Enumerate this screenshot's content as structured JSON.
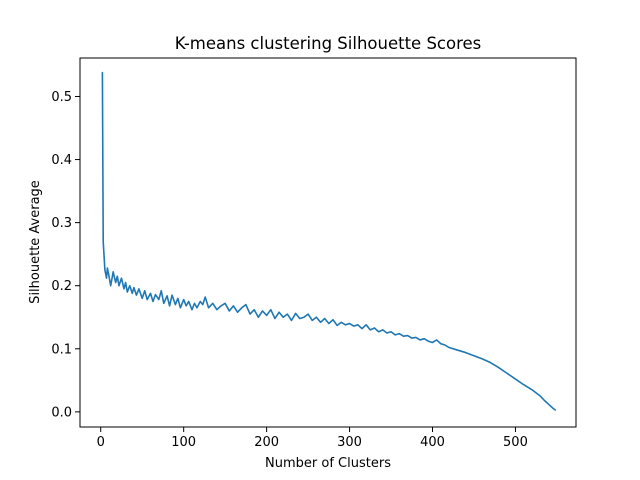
{
  "chart_data": {
    "type": "line",
    "title": "K-means clustering Silhouette Scores",
    "xlabel": "Number of Clusters",
    "ylabel": "Silhouette Average",
    "xlim": [
      -25,
      573
    ],
    "ylim": [
      -0.024,
      0.561
    ],
    "xticks": [
      0,
      100,
      200,
      300,
      400,
      500
    ],
    "xtick_labels": [
      "0",
      "100",
      "200",
      "300",
      "400",
      "500"
    ],
    "yticks": [
      0.0,
      0.1,
      0.2,
      0.3,
      0.4,
      0.5
    ],
    "ytick_labels": [
      "0.0",
      "0.1",
      "0.2",
      "0.3",
      "0.4",
      "0.5"
    ],
    "grid": false,
    "series_color": "#1f77b4",
    "series": [
      {
        "x": [
          2,
          3,
          5,
          7,
          8,
          10,
          12,
          15,
          18,
          20,
          22,
          25,
          28,
          30,
          32,
          35,
          38,
          40,
          43,
          46,
          50,
          53,
          56,
          60,
          63,
          66,
          70,
          73,
          76,
          80,
          83,
          86,
          90,
          93,
          96,
          100,
          103,
          106,
          110,
          113,
          116,
          120,
          123,
          126,
          130,
          135,
          140,
          145,
          150,
          155,
          160,
          165,
          170,
          175,
          180,
          185,
          190,
          195,
          200,
          205,
          210,
          215,
          220,
          225,
          230,
          235,
          240,
          245,
          250,
          255,
          260,
          265,
          270,
          275,
          280,
          285,
          290,
          295,
          300,
          305,
          310,
          315,
          320,
          325,
          330,
          335,
          340,
          345,
          350,
          355,
          360,
          365,
          370,
          375,
          380,
          385,
          390,
          395,
          400,
          405,
          410,
          415,
          420,
          430,
          440,
          450,
          460,
          470,
          480,
          490,
          500,
          510,
          520,
          530,
          535,
          540,
          545,
          548
        ],
        "y": [
          0.538,
          0.27,
          0.225,
          0.212,
          0.228,
          0.215,
          0.2,
          0.222,
          0.205,
          0.215,
          0.2,
          0.212,
          0.195,
          0.205,
          0.19,
          0.2,
          0.188,
          0.197,
          0.185,
          0.195,
          0.18,
          0.192,
          0.178,
          0.188,
          0.175,
          0.186,
          0.178,
          0.192,
          0.172,
          0.184,
          0.168,
          0.185,
          0.17,
          0.18,
          0.165,
          0.178,
          0.168,
          0.175,
          0.162,
          0.172,
          0.165,
          0.175,
          0.17,
          0.182,
          0.165,
          0.172,
          0.162,
          0.168,
          0.172,
          0.16,
          0.168,
          0.158,
          0.165,
          0.17,
          0.155,
          0.162,
          0.15,
          0.16,
          0.153,
          0.162,
          0.148,
          0.158,
          0.15,
          0.155,
          0.145,
          0.156,
          0.148,
          0.15,
          0.155,
          0.145,
          0.15,
          0.142,
          0.148,
          0.14,
          0.146,
          0.137,
          0.142,
          0.138,
          0.14,
          0.136,
          0.138,
          0.132,
          0.138,
          0.13,
          0.133,
          0.127,
          0.13,
          0.125,
          0.127,
          0.122,
          0.124,
          0.12,
          0.121,
          0.117,
          0.118,
          0.114,
          0.116,
          0.112,
          0.11,
          0.114,
          0.108,
          0.106,
          0.102,
          0.098,
          0.094,
          0.089,
          0.084,
          0.078,
          0.07,
          0.061,
          0.052,
          0.043,
          0.035,
          0.025,
          0.018,
          0.012,
          0.006,
          0.003
        ]
      }
    ]
  }
}
